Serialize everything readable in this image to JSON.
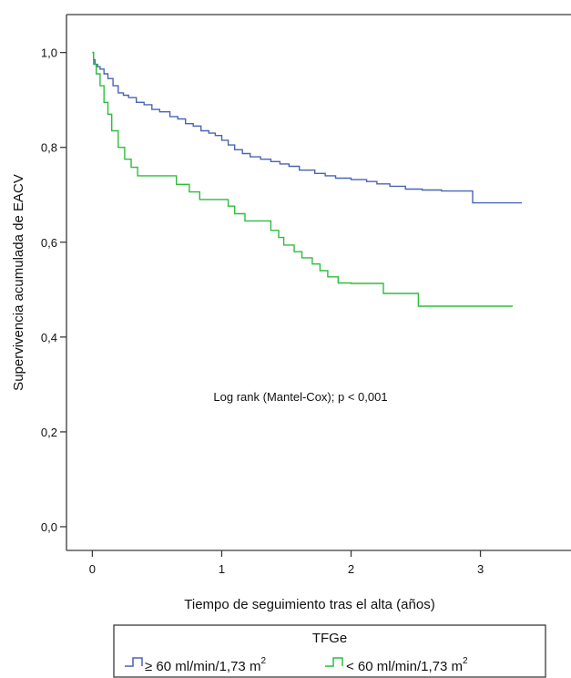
{
  "chart_data": {
    "type": "line",
    "step": true,
    "title": "",
    "xlabel": "Tiempo de seguimiento tras el alta (años)",
    "ylabel": "Supervivencia acumulada de EACV",
    "annotation": "Log rank (Mantel-Cox); p < 0,001",
    "xlim": [
      -0.2,
      3.7
    ],
    "ylim": [
      -0.05,
      1.08
    ],
    "x_ticks": [
      0,
      1,
      2,
      3
    ],
    "x_tick_labels": [
      "0",
      "1",
      "2",
      "3"
    ],
    "y_ticks": [
      0,
      0.2,
      0.4,
      0.6,
      0.8,
      1.0
    ],
    "y_tick_labels": [
      "0,0",
      "0,2",
      "0,4",
      "0,6",
      "0,8",
      "1,0"
    ],
    "grid": false,
    "legend": {
      "title": "TFGe",
      "placement": "bottom",
      "entries": [
        {
          "text": "≥ 60 ml/min/1,73 m",
          "superscript": "2",
          "color": "#4a64b4"
        },
        {
          "text": "< 60 ml/min/1,73 m",
          "superscript": "2",
          "color": "#2ebd3c"
        }
      ]
    },
    "series": [
      {
        "color": "#4a64b4",
        "x": [
          0,
          0.01,
          0.02,
          0.04,
          0.06,
          0.09,
          0.12,
          0.16,
          0.2,
          0.24,
          0.28,
          0.34,
          0.4,
          0.46,
          0.52,
          0.6,
          0.66,
          0.72,
          0.78,
          0.84,
          0.9,
          0.95,
          1.0,
          1.05,
          1.1,
          1.16,
          1.22,
          1.3,
          1.38,
          1.45,
          1.52,
          1.6,
          1.72,
          1.8,
          1.88,
          2.0,
          2.12,
          2.2,
          2.3,
          2.42,
          2.55,
          2.7,
          2.85,
          2.94,
          3.32
        ],
        "y": [
          1.0,
          0.985,
          0.975,
          0.97,
          0.965,
          0.955,
          0.945,
          0.93,
          0.915,
          0.91,
          0.905,
          0.895,
          0.89,
          0.88,
          0.875,
          0.865,
          0.86,
          0.85,
          0.845,
          0.835,
          0.83,
          0.825,
          0.815,
          0.805,
          0.795,
          0.787,
          0.78,
          0.775,
          0.77,
          0.765,
          0.76,
          0.752,
          0.745,
          0.74,
          0.735,
          0.732,
          0.728,
          0.723,
          0.718,
          0.712,
          0.71,
          0.708,
          0.708,
          0.683,
          0.683
        ]
      },
      {
        "color": "#2ebd3c",
        "x": [
          0,
          0.01,
          0.03,
          0.06,
          0.09,
          0.12,
          0.15,
          0.2,
          0.25,
          0.3,
          0.35,
          0.65,
          0.75,
          0.83,
          1.05,
          1.1,
          1.18,
          1.38,
          1.44,
          1.48,
          1.56,
          1.62,
          1.7,
          1.76,
          1.82,
          1.9,
          2.0,
          2.25,
          2.52,
          3.25
        ],
        "y": [
          1.0,
          0.975,
          0.955,
          0.93,
          0.895,
          0.87,
          0.835,
          0.8,
          0.775,
          0.758,
          0.74,
          0.722,
          0.706,
          0.69,
          0.676,
          0.66,
          0.645,
          0.625,
          0.61,
          0.594,
          0.58,
          0.567,
          0.554,
          0.54,
          0.527,
          0.514,
          0.513,
          0.492,
          0.465,
          0.465
        ]
      }
    ]
  }
}
